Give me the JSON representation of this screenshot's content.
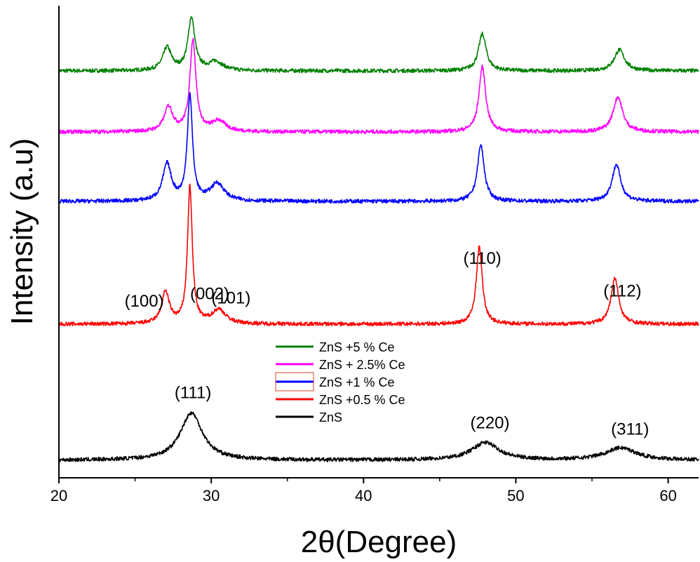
{
  "chart_data": {
    "type": "line",
    "xlabel": "2θ(Degree)",
    "ylabel": "Intensity (a.u)",
    "xlim": [
      20,
      62
    ],
    "x_ticks": [
      20,
      30,
      40,
      50,
      60
    ],
    "y_ticks_shown": false,
    "grid": false,
    "legend": {
      "placement": "center"
    },
    "series": [
      {
        "name": "ZnS +5 % Ce",
        "color": "#008000",
        "offset": 4,
        "peaks": [
          {
            "x": 27.1,
            "height": 0.13,
            "width": 0.5
          },
          {
            "x": 28.7,
            "height": 0.3,
            "width": 0.4
          },
          {
            "x": 30.3,
            "height": 0.05,
            "width": 0.8
          },
          {
            "x": 47.8,
            "height": 0.21,
            "width": 0.45
          },
          {
            "x": 56.8,
            "height": 0.12,
            "width": 0.6
          }
        ]
      },
      {
        "name": "ZnS + 2.5% Ce",
        "color": "#ff00ff",
        "offset": 3,
        "peaks": [
          {
            "x": 27.2,
            "height": 0.14,
            "width": 0.5
          },
          {
            "x": 28.8,
            "height": 0.52,
            "width": 0.35
          },
          {
            "x": 30.5,
            "height": 0.06,
            "width": 0.8
          },
          {
            "x": 47.8,
            "height": 0.37,
            "width": 0.4
          },
          {
            "x": 56.7,
            "height": 0.2,
            "width": 0.55
          }
        ]
      },
      {
        "name": "ZnS +1 % Ce",
        "color": "#0000ff",
        "offset": 2,
        "peaks": [
          {
            "x": 27.1,
            "height": 0.21,
            "width": 0.5
          },
          {
            "x": 28.6,
            "height": 0.6,
            "width": 0.3
          },
          {
            "x": 30.4,
            "height": 0.1,
            "width": 0.8
          },
          {
            "x": 47.7,
            "height": 0.32,
            "width": 0.4
          },
          {
            "x": 56.6,
            "height": 0.21,
            "width": 0.5
          }
        ]
      },
      {
        "name": "ZnS +0.5 % Ce",
        "color": "#ff0000",
        "offset": 1,
        "peaks": [
          {
            "x": 27.0,
            "height": 0.18,
            "width": 0.45
          },
          {
            "x": 28.6,
            "height": 0.78,
            "width": 0.28
          },
          {
            "x": 30.5,
            "height": 0.08,
            "width": 0.8
          },
          {
            "x": 47.6,
            "height": 0.44,
            "width": 0.35
          },
          {
            "x": 56.5,
            "height": 0.26,
            "width": 0.45
          }
        ]
      },
      {
        "name": "ZnS",
        "color": "#000000",
        "offset": 0,
        "peaks": [
          {
            "x": 28.7,
            "height": 0.27,
            "width": 1.3
          },
          {
            "x": 48.0,
            "height": 0.1,
            "width": 1.6
          },
          {
            "x": 56.9,
            "height": 0.07,
            "width": 1.8
          }
        ]
      }
    ],
    "annotations": [
      {
        "text": "(002)",
        "x": 29.9,
        "series": "ZnS +0.5 % Ce"
      },
      {
        "text": "(100)",
        "x": 25.6,
        "series": "ZnS +0.5 % Ce"
      },
      {
        "text": "(101)",
        "x": 31.3,
        "series": "ZnS +0.5 % Ce"
      },
      {
        "text": "(110)",
        "x": 47.8,
        "series": "ZnS +0.5 % Ce"
      },
      {
        "text": "(112)",
        "x": 57.0,
        "series": "ZnS +0.5 % Ce"
      },
      {
        "text": "(111)",
        "x": 28.8,
        "series": "ZnS"
      },
      {
        "text": "(220)",
        "x": 48.3,
        "series": "ZnS"
      },
      {
        "text": "(311)",
        "x": 57.5,
        "series": "ZnS"
      }
    ]
  }
}
